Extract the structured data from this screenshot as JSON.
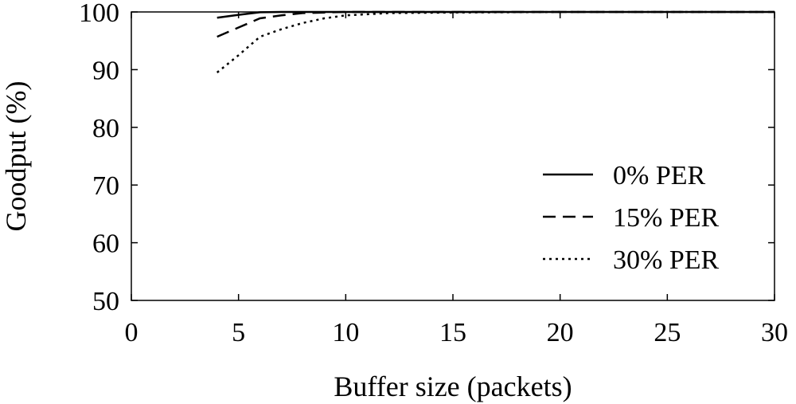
{
  "chart_data": {
    "type": "line",
    "xlabel": "Buffer size (packets)",
    "ylabel": "Goodput (%)",
    "xlim": [
      0,
      30
    ],
    "ylim": [
      50,
      100
    ],
    "xticks": [
      0,
      5,
      10,
      15,
      20,
      25,
      30
    ],
    "yticks": [
      50,
      60,
      70,
      80,
      90,
      100
    ],
    "xtick_labels": [
      "0",
      "5",
      "10",
      "15",
      "20",
      "25",
      "30"
    ],
    "ytick_labels": [
      "50",
      "60",
      "70",
      "80",
      "90",
      "100"
    ],
    "grid": "none",
    "legend_position": "right",
    "series": [
      {
        "name": "0% PER",
        "style": "solid",
        "color": "#000000",
        "x": [
          4,
          5,
          6,
          7,
          8,
          10,
          15,
          20,
          25,
          30
        ],
        "y": [
          99.0,
          99.5,
          99.95,
          100,
          100,
          100,
          100,
          100,
          100,
          100
        ]
      },
      {
        "name": "15% PER",
        "style": "dashed",
        "color": "#000000",
        "x": [
          4,
          5,
          6,
          7,
          8,
          9,
          10,
          15,
          20,
          25,
          30
        ],
        "y": [
          95.7,
          97.3,
          98.9,
          99.4,
          99.8,
          99.9,
          100,
          100,
          100,
          100,
          100
        ]
      },
      {
        "name": "30% PER",
        "style": "dotted",
        "color": "#000000",
        "x": [
          4,
          5,
          6,
          7,
          8,
          9,
          10,
          11,
          12,
          15,
          20,
          25,
          30
        ],
        "y": [
          89.5,
          92.5,
          95.7,
          97.0,
          98.1,
          98.9,
          99.4,
          99.6,
          99.8,
          99.9,
          100,
          100,
          100
        ]
      }
    ]
  }
}
